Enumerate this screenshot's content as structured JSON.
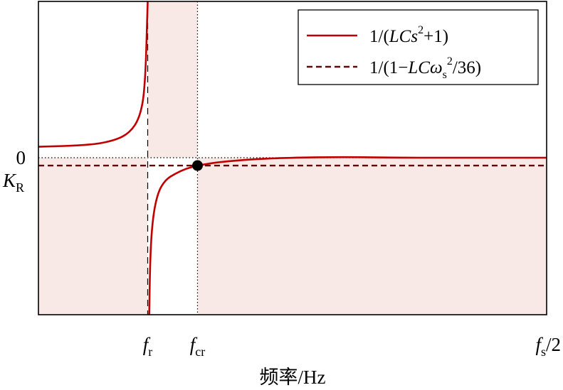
{
  "chart_data": {
    "type": "line",
    "title": "",
    "xlabel": "频率/Hz",
    "ylabel": "",
    "x_ticks": [
      {
        "id": "fr",
        "base": "f",
        "sub": "r",
        "x": 0.215
      },
      {
        "id": "fcr",
        "base": "f",
        "sub": "cr",
        "x": 0.313
      },
      {
        "id": "fs2",
        "base": "f",
        "sub": "s",
        "suffix": "/2",
        "x": 1.0
      }
    ],
    "y_ticks": [
      {
        "id": "zero",
        "text": "0",
        "y": 0.0
      },
      {
        "id": "kr",
        "base": "K",
        "sub": "R",
        "y": -0.05
      }
    ],
    "xlim": [
      0,
      1
    ],
    "ylim": [
      -1.0,
      1.0
    ],
    "grid": false,
    "legend_position": "top-right",
    "shaded_regions": [
      {
        "x_from": 0.0,
        "x_to": 0.215,
        "y_from": -1.0,
        "y_to": 0.0
      },
      {
        "x_from": 0.215,
        "x_to": 0.313,
        "y_from": 0.0,
        "y_to": 1.0
      },
      {
        "x_from": 0.313,
        "x_to": 1.0,
        "y_from": -1.0,
        "y_to": 0.0
      }
    ],
    "vertical_guides": [
      {
        "x": 0.215,
        "style": "dashed"
      },
      {
        "x": 0.313,
        "style": "dotted"
      }
    ],
    "horizontal_guides": [
      {
        "y": 0.0,
        "style": "dotted"
      }
    ],
    "series": [
      {
        "name": "1/(LCs²+1)",
        "style": "solid",
        "color": "#c00000",
        "x": [
          0.0,
          0.1,
          0.15,
          0.18,
          0.2,
          0.21,
          0.215,
          0.218,
          0.22,
          0.225,
          0.235,
          0.25,
          0.27,
          0.29,
          0.313,
          0.35,
          0.4,
          0.45,
          0.5,
          0.6,
          0.7,
          0.8,
          0.9,
          1.0
        ],
        "y": [
          0.07,
          0.08,
          0.11,
          0.16,
          0.26,
          0.45,
          1.0,
          -1.0,
          -0.62,
          -0.38,
          -0.22,
          -0.14,
          -0.1,
          -0.07,
          -0.05,
          -0.03,
          -0.015,
          -0.005,
          0.0,
          0.005,
          0.0,
          0.0,
          0.0,
          0.0
        ]
      },
      {
        "name": "1/(1−LCω_s²/36)",
        "style": "dashed",
        "color": "#5a0a0a",
        "x": [
          0.0,
          1.0
        ],
        "y": [
          -0.05,
          -0.05
        ]
      }
    ],
    "markers": [
      {
        "x": 0.313,
        "y": -0.05,
        "shape": "filled-circle",
        "color": "#000000"
      }
    ],
    "legend": [
      {
        "id": "solid",
        "pre": "1/(",
        "ital": "LCs",
        "sup": "2",
        "post": "+1)"
      },
      {
        "id": "dashed",
        "pre": "1/(1−",
        "ital": "LCω",
        "sub": "s",
        "sup": "2",
        "post": "/36)"
      }
    ]
  },
  "colors": {
    "shade": "#f8e8e6",
    "curve": "#c00000",
    "dashed_line": "#5a0a0a"
  }
}
